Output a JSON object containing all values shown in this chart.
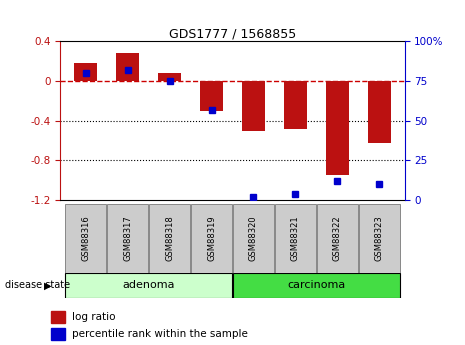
{
  "title": "GDS1777 / 1568855",
  "samples": [
    "GSM88316",
    "GSM88317",
    "GSM88318",
    "GSM88319",
    "GSM88320",
    "GSM88321",
    "GSM88322",
    "GSM88323"
  ],
  "log_ratio": [
    0.18,
    0.28,
    0.08,
    -0.3,
    -0.5,
    -0.48,
    -0.95,
    -0.62
  ],
  "percentile_rank": [
    80,
    82,
    75,
    57,
    2,
    4,
    12,
    10
  ],
  "ylim_left": [
    -1.2,
    0.4
  ],
  "ylim_right": [
    0,
    100
  ],
  "yticks_left": [
    -1.2,
    -0.8,
    -0.4,
    0.0,
    0.4
  ],
  "yticks_right": [
    0,
    25,
    50,
    75,
    100
  ],
  "bar_color": "#BB1111",
  "dot_color": "#0000CC",
  "zero_line_color": "#CC0000",
  "grid_color": "#000000",
  "adenoma_color": "#CCFFCC",
  "carcinoma_color": "#44DD44",
  "legend_log_ratio": "log ratio",
  "legend_percentile": "percentile rank within the sample",
  "disease_state_label": "disease state",
  "bar_width": 0.55,
  "n_adenoma": 4,
  "n_carcinoma": 4
}
